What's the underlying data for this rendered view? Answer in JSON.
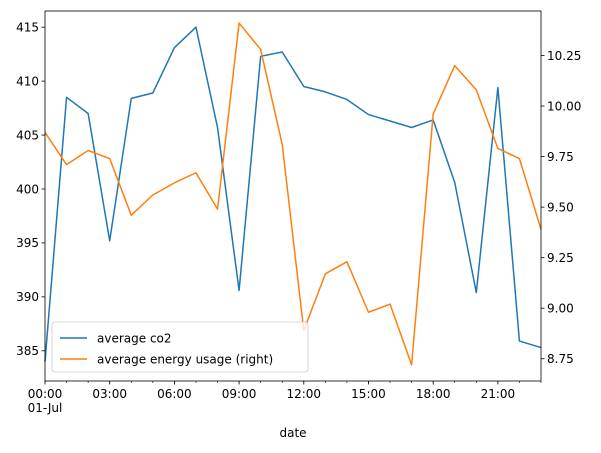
{
  "chart_data": {
    "type": "line",
    "xlabel": "date",
    "x": [
      "00:00",
      "01:00",
      "02:00",
      "03:00",
      "04:00",
      "05:00",
      "06:00",
      "07:00",
      "08:00",
      "09:00",
      "10:00",
      "11:00",
      "12:00",
      "13:00",
      "14:00",
      "15:00",
      "16:00",
      "17:00",
      "18:00",
      "19:00",
      "20:00",
      "21:00",
      "22:00",
      "23:00"
    ],
    "x_ticks": [
      {
        "hour": 0,
        "label": "00:00",
        "sublabel": "01-Jul"
      },
      {
        "hour": 3,
        "label": "03:00"
      },
      {
        "hour": 6,
        "label": "06:00"
      },
      {
        "hour": 9,
        "label": "09:00"
      },
      {
        "hour": 12,
        "label": "12:00"
      },
      {
        "hour": 15,
        "label": "15:00"
      },
      {
        "hour": 18,
        "label": "18:00"
      },
      {
        "hour": 21,
        "label": "21:00"
      }
    ],
    "y_left": {
      "ylim": [
        382.2,
        416.5
      ],
      "ticks": [
        385,
        390,
        395,
        400,
        405,
        410,
        415
      ]
    },
    "y_right": {
      "ylim": [
        8.64,
        10.47
      ],
      "ticks": [
        8.75,
        9.0,
        9.25,
        9.5,
        9.75,
        10.0,
        10.25
      ],
      "tick_labels": [
        "8.75",
        "9.00",
        "9.25",
        "9.50",
        "9.75",
        "10.00",
        "10.25"
      ]
    },
    "series": [
      {
        "name": "average co2",
        "axis": "left",
        "color": "#1f77b4",
        "values": [
          384.0,
          408.5,
          407.0,
          395.2,
          408.4,
          408.9,
          413.1,
          415.0,
          405.7,
          390.6,
          412.3,
          412.7,
          409.5,
          409.0,
          408.3,
          406.9,
          406.3,
          405.7,
          406.4,
          400.6,
          390.4,
          409.4,
          385.9,
          385.3
        ]
      },
      {
        "name": "average energy usage (right)",
        "axis": "right",
        "color": "#ff7f0e",
        "values": [
          9.87,
          9.71,
          9.78,
          9.74,
          9.46,
          9.56,
          9.62,
          9.67,
          9.49,
          10.41,
          10.28,
          9.81,
          8.89,
          9.17,
          9.23,
          8.98,
          9.02,
          8.72,
          9.96,
          10.2,
          10.08,
          9.79,
          9.74,
          9.39
        ]
      }
    ],
    "legend": {
      "placement": "lower-left"
    }
  }
}
